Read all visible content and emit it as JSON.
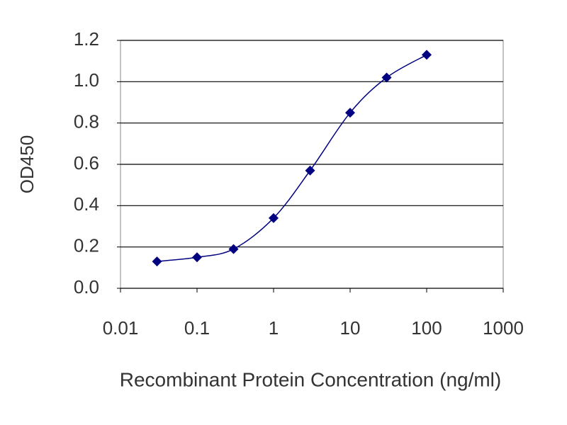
{
  "chart_data": {
    "type": "line",
    "y_label": "OD450",
    "x_label": "Recombinant Protein Concentration (ng/ml)",
    "x": [
      0.03,
      0.1,
      0.3,
      1,
      3,
      10,
      30,
      100
    ],
    "series": [
      {
        "color": "#000080",
        "values": [
          0.13,
          0.15,
          0.19,
          0.34,
          0.57,
          0.85,
          1.02,
          1.13
        ]
      }
    ],
    "xlim": [
      0.01,
      1000
    ],
    "xticks": [
      0.01,
      0.1,
      1,
      10,
      100,
      1000
    ],
    "xscale": "log",
    "ylim": [
      0,
      1.2
    ],
    "yticks": [
      {
        "value": 0,
        "label": "0.0"
      },
      0.2,
      0.4,
      0.6,
      0.8,
      {
        "value": 1,
        "label": "1.0"
      },
      1.2
    ],
    "grid": true
  }
}
